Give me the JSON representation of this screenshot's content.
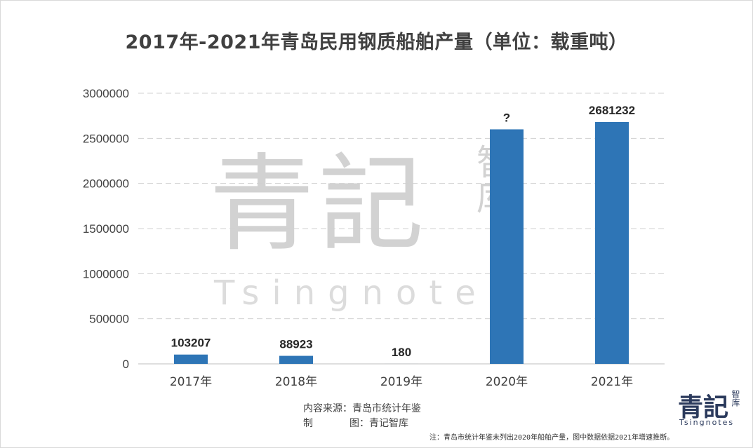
{
  "watermark": {
    "big": "青記",
    "small": "智库",
    "latin": "Tsingnotes"
  },
  "chart_data": {
    "type": "bar",
    "title": "2017年-2021年青岛民用钢质船舶产量（单位：载重吨）",
    "categories": [
      "2017年",
      "2018年",
      "2019年",
      "2020年",
      "2021年"
    ],
    "values": [
      103207,
      88923,
      180,
      2600000,
      2681232
    ],
    "data_labels": [
      "103207",
      "88923",
      "180",
      "?",
      "2681232"
    ],
    "ylim": [
      0,
      3000000
    ],
    "yticks": [
      0,
      500000,
      1000000,
      1500000,
      2000000,
      2500000,
      3000000
    ],
    "ytick_labels": [
      "0",
      "500000",
      "1000000",
      "1500000",
      "2000000",
      "2500000",
      "3000000"
    ],
    "grid": true,
    "legend": "none",
    "bar_color": "#2e75b6"
  },
  "footer": {
    "source": "内容来源：青岛市统计年鉴",
    "maker_label_a": "制",
    "maker_label_b": "图：青记智库",
    "note": "注：青岛市统计年鉴未列出2020年船舶产量，图中数据依据2021年增速推断。"
  },
  "logo": {
    "big": "青記",
    "small": "智库",
    "latin": "Tsingnotes"
  }
}
